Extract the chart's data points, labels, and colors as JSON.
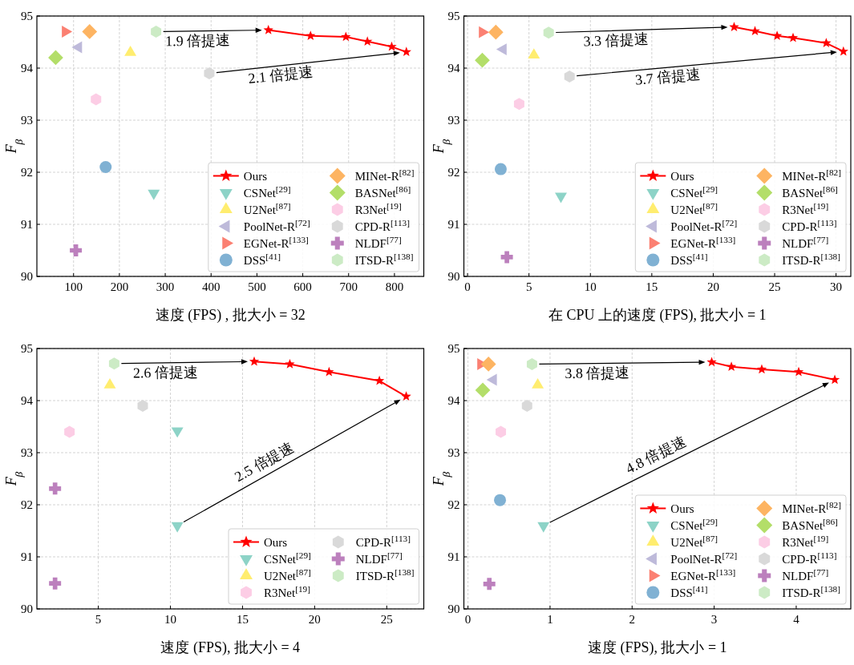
{
  "chart_data": [
    {
      "type": "scatter",
      "xlabel": "速度 (FPS) , 批大小 = 32",
      "ylabel": "F$_{β}$",
      "xlim": [
        20,
        864
      ],
      "ylim": [
        90,
        95
      ],
      "xticks": [
        100,
        200,
        300,
        400,
        500,
        600,
        700,
        800
      ],
      "yticks": [
        90,
        91,
        92,
        93,
        94,
        95
      ],
      "grid": true,
      "legend": "bottom right",
      "series": [
        {
          "name": "Ours",
          "type": "line",
          "marker": "star",
          "color": "#ff0000",
          "x": [
            525,
            617,
            694,
            741,
            794,
            826
          ],
          "values": [
            94.73,
            94.62,
            94.6,
            94.51,
            94.41,
            94.31
          ]
        },
        {
          "name": "CSNet$^{[29]}$",
          "marker": "triangle-down",
          "color": "#8dd3c7",
          "x": [
            275
          ],
          "values": [
            91.6
          ]
        },
        {
          "name": "U2Net$^{[87]}$",
          "marker": "triangle",
          "color": "#ffed6f",
          "x": [
            224
          ],
          "values": [
            94.3
          ]
        },
        {
          "name": "PoolNet-R$^{[72]}$",
          "marker": "triangle-left",
          "color": "#bebada",
          "x": [
            111
          ],
          "values": [
            94.4
          ]
        },
        {
          "name": "EGNet-R$^{[133]}$",
          "marker": "triangle-right",
          "color": "#fb8072",
          "x": [
            82
          ],
          "values": [
            94.7
          ]
        },
        {
          "name": "DSS$^{[41]}$",
          "marker": "circle",
          "color": "#80b1d3",
          "x": [
            170
          ],
          "values": [
            92.1
          ]
        },
        {
          "name": "MINet-R$^{[82]}$",
          "marker": "diamond",
          "color": "#fdb462",
          "x": [
            135
          ],
          "values": [
            94.7
          ]
        },
        {
          "name": "BASNet$^{[86]}$",
          "marker": "diamond",
          "color": "#b3de69",
          "x": [
            61
          ],
          "values": [
            94.2
          ]
        },
        {
          "name": "R3Net$^{[19]}$",
          "color": "#fccde5",
          "x": [
            149
          ],
          "values": [
            93.4
          ]
        },
        {
          "name": "CPD-R$^{[113]}$",
          "color": "#d9d9d9",
          "x": [
            396
          ],
          "values": [
            93.9
          ]
        },
        {
          "name": "NLDF$^{[77]}$",
          "marker": "plus",
          "color": "#bc80bd",
          "x": [
            105
          ],
          "values": [
            90.5
          ]
        },
        {
          "name": "ITSD-R$^{[138]}$",
          "color": "#ccebc5",
          "x": [
            280
          ],
          "values": [
            94.7
          ]
        }
      ],
      "annotations": [
        "1.9 倍提速",
        "2.1 倍提速"
      ]
    },
    {
      "type": "scatter",
      "xlabel": "在 CPU 上的速度 (FPS), 批大小 = 1",
      "ylabel": "F$_{β}$",
      "xlim": [
        -0.3,
        31.2
      ],
      "ylim": [
        90,
        95
      ],
      "xticks": [
        0,
        5,
        10,
        15,
        20,
        25,
        30
      ],
      "yticks": [
        90,
        91,
        92,
        93,
        94,
        95
      ],
      "grid": true,
      "legend": "bottom right",
      "series": [
        {
          "name": "Ours",
          "type": "line",
          "marker": "star",
          "color": "#ff0000",
          "x": [
            21.7,
            23.4,
            25.2,
            26.5,
            29.2,
            30.6
          ],
          "values": [
            94.79,
            94.71,
            94.62,
            94.58,
            94.48,
            94.32
          ]
        },
        {
          "name": "CSNet$^{[29]}$",
          "marker": "triangle-down",
          "color": "#8dd3c7",
          "x": [
            7.6
          ],
          "values": [
            91.54
          ]
        },
        {
          "name": "U2Net$^{[87]}$",
          "marker": "triangle",
          "color": "#ffed6f",
          "x": [
            5.4
          ],
          "values": [
            94.25
          ]
        },
        {
          "name": "PoolNet-R$^{[72]}$",
          "marker": "triangle-left",
          "color": "#bebada",
          "x": [
            2.9
          ],
          "values": [
            94.36
          ]
        },
        {
          "name": "EGNet-R$^{[133]}$",
          "marker": "triangle-right",
          "color": "#fb8072",
          "x": [
            1.2
          ],
          "values": [
            94.69
          ]
        },
        {
          "name": "DSS$^{[41]}$",
          "marker": "circle",
          "color": "#80b1d3",
          "x": [
            2.7
          ],
          "values": [
            92.06
          ]
        },
        {
          "name": "MINet-R$^{[82]}$",
          "marker": "diamond",
          "color": "#fdb462",
          "x": [
            2.3
          ],
          "values": [
            94.69
          ]
        },
        {
          "name": "BASNet$^{[86]}$",
          "marker": "diamond",
          "color": "#b3de69",
          "x": [
            1.2
          ],
          "values": [
            94.15
          ]
        },
        {
          "name": "R3Net$^{[19]}$",
          "color": "#fccde5",
          "x": [
            4.2
          ],
          "values": [
            93.31
          ]
        },
        {
          "name": "CPD-R$^{[113]}$",
          "color": "#d9d9d9",
          "x": [
            8.3
          ],
          "values": [
            93.84
          ]
        },
        {
          "name": "NLDF$^{[77]}$",
          "marker": "plus",
          "color": "#bc80bd",
          "x": [
            3.2
          ],
          "values": [
            90.37
          ]
        },
        {
          "name": "ITSD-R$^{[138]}$",
          "color": "#ccebc5",
          "x": [
            6.6
          ],
          "values": [
            94.68
          ]
        }
      ],
      "annotations": [
        "3.3 倍提速",
        "3.7 倍提速"
      ]
    },
    {
      "type": "scatter",
      "xlabel": "速度 (FPS), 批大小 = 4",
      "ylabel": "F$_{β}$",
      "xlim": [
        0.74,
        27.57
      ],
      "ylim": [
        90,
        95
      ],
      "xticks": [
        5,
        10,
        15,
        20,
        25
      ],
      "yticks": [
        90,
        91,
        92,
        93,
        94,
        95
      ],
      "grid": true,
      "legend": "bottom right",
      "series": [
        {
          "name": "Ours",
          "type": "line",
          "marker": "star",
          "color": "#ff0000",
          "x": [
            15.81,
            18.28,
            21.0,
            24.49,
            26.35
          ],
          "values": [
            94.75,
            94.7,
            94.55,
            94.38,
            94.08
          ]
        },
        {
          "name": "CSNet$^{[29]}$",
          "marker": "triangle-down",
          "color": "#8dd3c7",
          "x": [
            10.48,
            10.48
          ],
          "values": [
            93.42,
            91.6
          ]
        },
        {
          "name": "U2Net$^{[87]}$",
          "marker": "triangle",
          "color": "#ffed6f",
          "x": [
            5.8
          ],
          "values": [
            94.3
          ]
        },
        {
          "name": "R3Net$^{[19]}$",
          "color": "#fccde5",
          "x": [
            3.0
          ],
          "values": [
            93.4
          ]
        },
        {
          "name": "CPD-R$^{[113]}$",
          "color": "#d9d9d9",
          "x": [
            8.08
          ],
          "values": [
            93.9
          ]
        },
        {
          "name": "NLDF$^{[77]}$",
          "marker": "plus",
          "color": "#bc80bd",
          "x": [
            2.0,
            2.0
          ],
          "values": [
            92.31,
            90.49
          ]
        },
        {
          "name": "ITSD-R$^{[138]}$",
          "color": "#ccebc5",
          "x": [
            6.1
          ],
          "values": [
            94.71
          ]
        }
      ],
      "annotations": [
        "2.6 倍提速",
        "2.5 倍提速"
      ]
    },
    {
      "type": "scatter",
      "xlabel": "速度 (FPS), 批大小 = 1",
      "ylabel": "F$_{β}$",
      "xlim": [
        -0.05,
        4.665
      ],
      "ylim": [
        90,
        95
      ],
      "xticks": [
        0,
        1,
        2,
        3,
        4
      ],
      "yticks": [
        90,
        91,
        92,
        93,
        94,
        95
      ],
      "grid": true,
      "legend": "bottom right",
      "series": [
        {
          "name": "Ours",
          "type": "line",
          "marker": "star",
          "color": "#ff0000",
          "x": [
            2.97,
            3.21,
            3.58,
            4.03,
            4.47
          ],
          "values": [
            94.74,
            94.65,
            94.6,
            94.55,
            94.4
          ]
        },
        {
          "name": "CSNet$^{[29]}$",
          "marker": "triangle-down",
          "color": "#8dd3c7",
          "x": [
            0.92
          ],
          "values": [
            91.6
          ]
        },
        {
          "name": "U2Net$^{[87]}$",
          "marker": "triangle",
          "color": "#ffed6f",
          "x": [
            0.85
          ],
          "values": [
            94.3
          ]
        },
        {
          "name": "PoolNet-R$^{[72]}$",
          "marker": "triangle-left",
          "color": "#bebada",
          "x": [
            0.31
          ],
          "values": [
            94.4
          ]
        },
        {
          "name": "EGNet-R$^{[133]}$",
          "marker": "triangle-right",
          "color": "#fb8072",
          "x": [
            0.155
          ],
          "values": [
            94.7
          ]
        },
        {
          "name": "DSS$^{[41]}$",
          "marker": "circle",
          "color": "#80b1d3",
          "x": [
            0.39
          ],
          "values": [
            92.09
          ]
        },
        {
          "name": "MINet-R$^{[82]}$",
          "marker": "diamond",
          "color": "#fdb462",
          "x": [
            0.25
          ],
          "values": [
            94.7
          ]
        },
        {
          "name": "BASNet$^{[86]}$",
          "marker": "diamond",
          "color": "#b3de69",
          "x": [
            0.18
          ],
          "values": [
            94.2
          ]
        },
        {
          "name": "R3Net$^{[19]}$",
          "color": "#fccde5",
          "x": [
            0.4
          ],
          "values": [
            93.4
          ]
        },
        {
          "name": "CPD-R$^{[113]}$",
          "color": "#d9d9d9",
          "x": [
            0.72
          ],
          "values": [
            93.9
          ]
        },
        {
          "name": "NLDF$^{[77]}$",
          "marker": "plus",
          "color": "#bc80bd",
          "x": [
            0.26
          ],
          "values": [
            90.48
          ]
        },
        {
          "name": "ITSD-R$^{[138]}$",
          "color": "#ccebc5",
          "x": [
            0.78
          ],
          "values": [
            94.7
          ]
        }
      ],
      "annotations": [
        "3.8 倍提速",
        "4.8 倍提速"
      ]
    }
  ]
}
